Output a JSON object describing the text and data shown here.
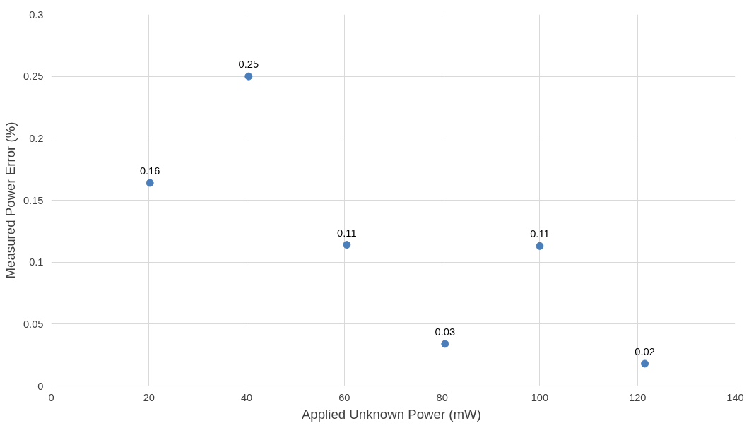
{
  "chart_data": {
    "type": "scatter",
    "xlabel": "Applied Unknown  Power (mW)",
    "ylabel": "Measured Power Error (%)",
    "x": [
      20.2,
      40.4,
      60.5,
      80.6,
      100,
      121.5
    ],
    "series": [
      {
        "color": "#4a7ebb",
        "values": [
          0.164,
          0.25,
          0.114,
          0.034,
          0.113,
          0.018
        ],
        "value_labels": [
          "0.16",
          "0.25",
          "0.11",
          "0.03",
          "0.11",
          "0.02"
        ]
      }
    ],
    "xlim": [
      0,
      140
    ],
    "xticks": [
      0,
      20,
      40,
      60,
      80,
      100,
      120,
      140
    ],
    "ylim": [
      0,
      0.3
    ],
    "yticks": [
      0,
      {
        "value": 0.05,
        "label": "0.05"
      },
      {
        "value": 0.1,
        "label": "0.1"
      },
      {
        "value": 0.15,
        "label": "0.15"
      },
      {
        "value": 0.2,
        "label": "0.2"
      },
      {
        "value": 0.25,
        "label": "0.25"
      },
      {
        "value": 0.3,
        "label": "0.3"
      }
    ],
    "grid": true,
    "marker": "circle"
  }
}
